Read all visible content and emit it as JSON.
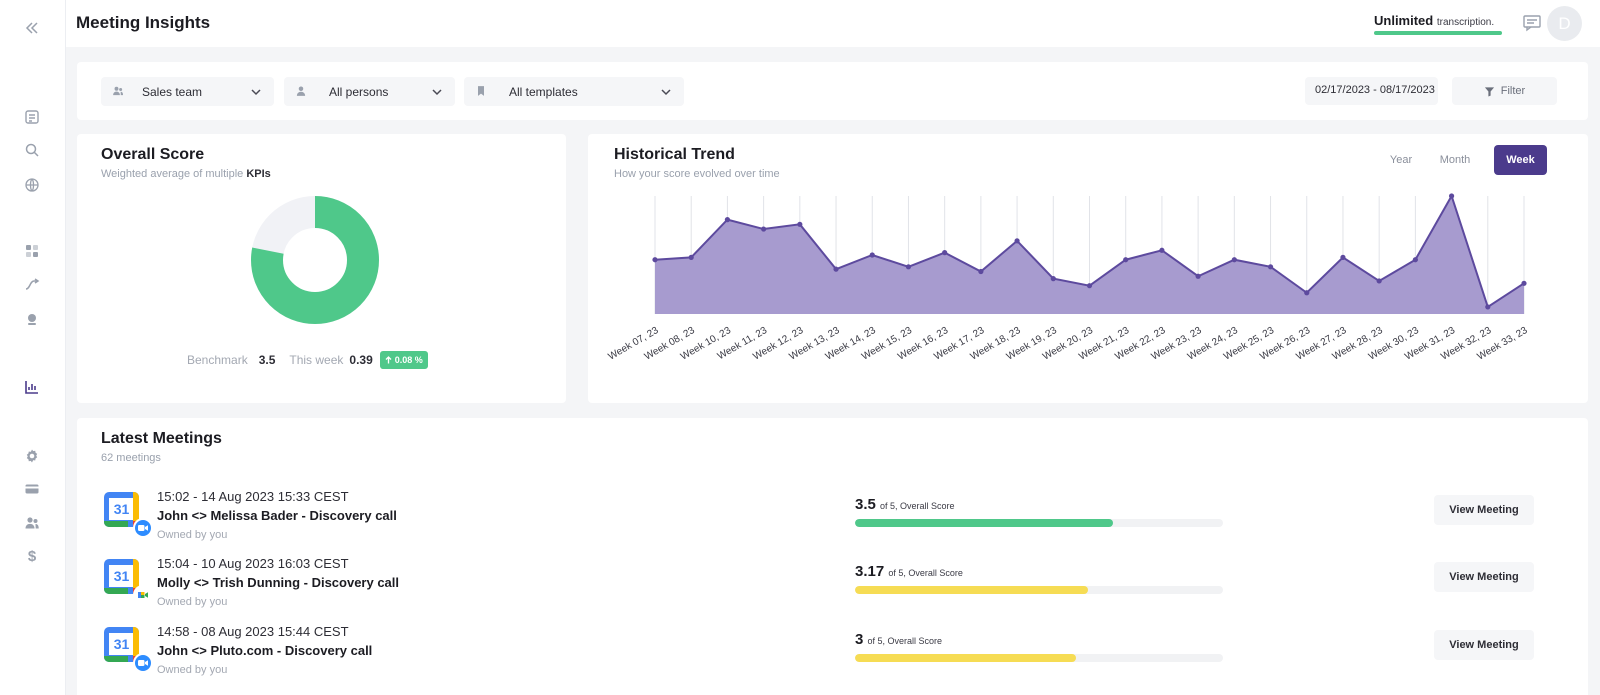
{
  "header": {
    "title": "Meeting Insights",
    "plan_label": "Unlimited",
    "plan_suffix": "transcription.",
    "avatar_initial": "D"
  },
  "sidebar": {
    "icons": [
      "collapse-icon",
      "notes-icon",
      "search-icon",
      "globe-icon",
      "dashboard-icon",
      "trend-icon",
      "bot-icon",
      "analytics-icon",
      "gear-icon",
      "card-icon",
      "team-icon",
      "dollar-icon"
    ]
  },
  "filters": {
    "team": "Sales team",
    "persons": "All persons",
    "templates": "All templates",
    "date_range": "02/17/2023 - 08/17/2023",
    "filter_label": "Filter"
  },
  "overall": {
    "title": "Overall Score",
    "subtitle_prefix": "Weighted average of multiple",
    "subtitle_bold": "KPIs",
    "benchmark_label": "Benchmark",
    "benchmark_value": "3.5",
    "week_label": "This week",
    "week_value": "0.39",
    "delta": "0.08 %",
    "donut_fraction": 0.78,
    "colors": {
      "donut": "#4fc88a",
      "donut_bg": "#f1f2f6"
    }
  },
  "trend": {
    "title": "Historical Trend",
    "subtitle": "How your score evolved over time",
    "ranges": [
      "Year",
      "Month",
      "Week"
    ],
    "active_range": "Week"
  },
  "chart_data": {
    "type": "area",
    "title": "Historical Trend",
    "categories": [
      "Week 07, 23",
      "Week 08, 23",
      "Week 10, 23",
      "Week 11, 23",
      "Week 12, 23",
      "Week 13, 23",
      "Week 14, 23",
      "Week 15, 23",
      "Week 16, 23",
      "Week 17, 23",
      "Week 18, 23",
      "Week 19, 23",
      "Week 20, 23",
      "Week 21, 23",
      "Week 22, 23",
      "Week 23, 23",
      "Week 24, 23",
      "Week 25, 23",
      "Week 26, 23",
      "Week 27, 23",
      "Week 28, 23",
      "Week 30, 23",
      "Week 31, 23",
      "Week 32, 23",
      "Week 33, 23"
    ],
    "values": [
      2.3,
      2.4,
      4.0,
      3.6,
      3.8,
      1.9,
      2.5,
      2.0,
      2.6,
      1.8,
      3.1,
      1.5,
      1.2,
      2.3,
      2.7,
      1.6,
      2.3,
      2.0,
      0.9,
      2.4,
      1.4,
      2.3,
      5.0,
      0.3,
      1.3
    ],
    "ylim": [
      0,
      5
    ],
    "grid": true,
    "colors": {
      "line": "#5d4a9e",
      "fill": "#a79bcf",
      "grid": "#e1e3e8"
    }
  },
  "meetings": {
    "title": "Latest Meetings",
    "count": "62 meetings",
    "score_suffix": "of 5, Overall Score",
    "view_label": "View Meeting",
    "items": [
      {
        "time": "15:02 - 14 Aug 2023 15:33 CEST",
        "title": "John <> Melissa Bader - Discovery call",
        "owner": "Owned by you",
        "score": "3.5",
        "score_value": 3.5,
        "bar_color": "#4fc88a",
        "platform": "zoom-icon",
        "calendar_day": "31"
      },
      {
        "time": "15:04 - 10 Aug 2023 16:03 CEST",
        "title": "Molly <> Trish Dunning - Discovery call",
        "owner": "Owned by you",
        "score": "3.17",
        "score_value": 3.17,
        "bar_color": "#f6dc54",
        "platform": "google-meet-icon",
        "calendar_day": "31"
      },
      {
        "time": "14:58 - 08 Aug 2023 15:44 CEST",
        "title": "John <> Pluto.com - Discovery call",
        "owner": "Owned by you",
        "score": "3",
        "score_value": 3,
        "bar_color": "#f6dc54",
        "platform": "zoom-icon",
        "calendar_day": "31"
      }
    ]
  }
}
